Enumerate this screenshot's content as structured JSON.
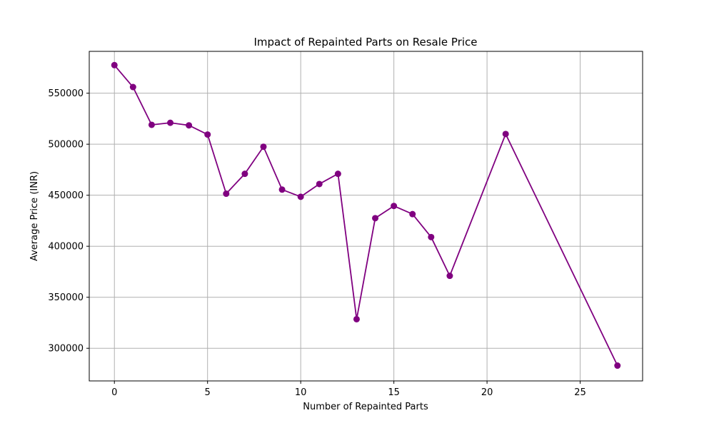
{
  "chart_data": {
    "type": "line",
    "title": "Impact of Repainted Parts on Resale Price",
    "xlabel": "Number of Repainted Parts",
    "ylabel": "Average Price (INR)",
    "xlim": [
      -1.35,
      28.35
    ],
    "ylim": [
      268000,
      591000
    ],
    "xticks": [
      0,
      5,
      10,
      15,
      20,
      25
    ],
    "yticks": [
      300000,
      350000,
      400000,
      450000,
      500000,
      550000
    ],
    "xtick_labels": [
      "0",
      "5",
      "10",
      "15",
      "20",
      "25"
    ],
    "ytick_labels": [
      "300000",
      "350000",
      "400000",
      "450000",
      "500000",
      "550000"
    ],
    "grid": true,
    "series": [
      {
        "color": "#800080",
        "marker": "circle",
        "x": [
          0,
          1,
          2,
          3,
          4,
          5,
          6,
          7,
          8,
          9,
          10,
          11,
          12,
          13,
          14,
          15,
          16,
          17,
          18,
          21,
          27
        ],
        "y": [
          577500,
          556000,
          519000,
          521000,
          518500,
          509500,
          451500,
          471000,
          497500,
          455500,
          448500,
          461000,
          471000,
          328500,
          427500,
          439500,
          431500,
          409000,
          371000,
          510000,
          283000
        ]
      }
    ]
  }
}
